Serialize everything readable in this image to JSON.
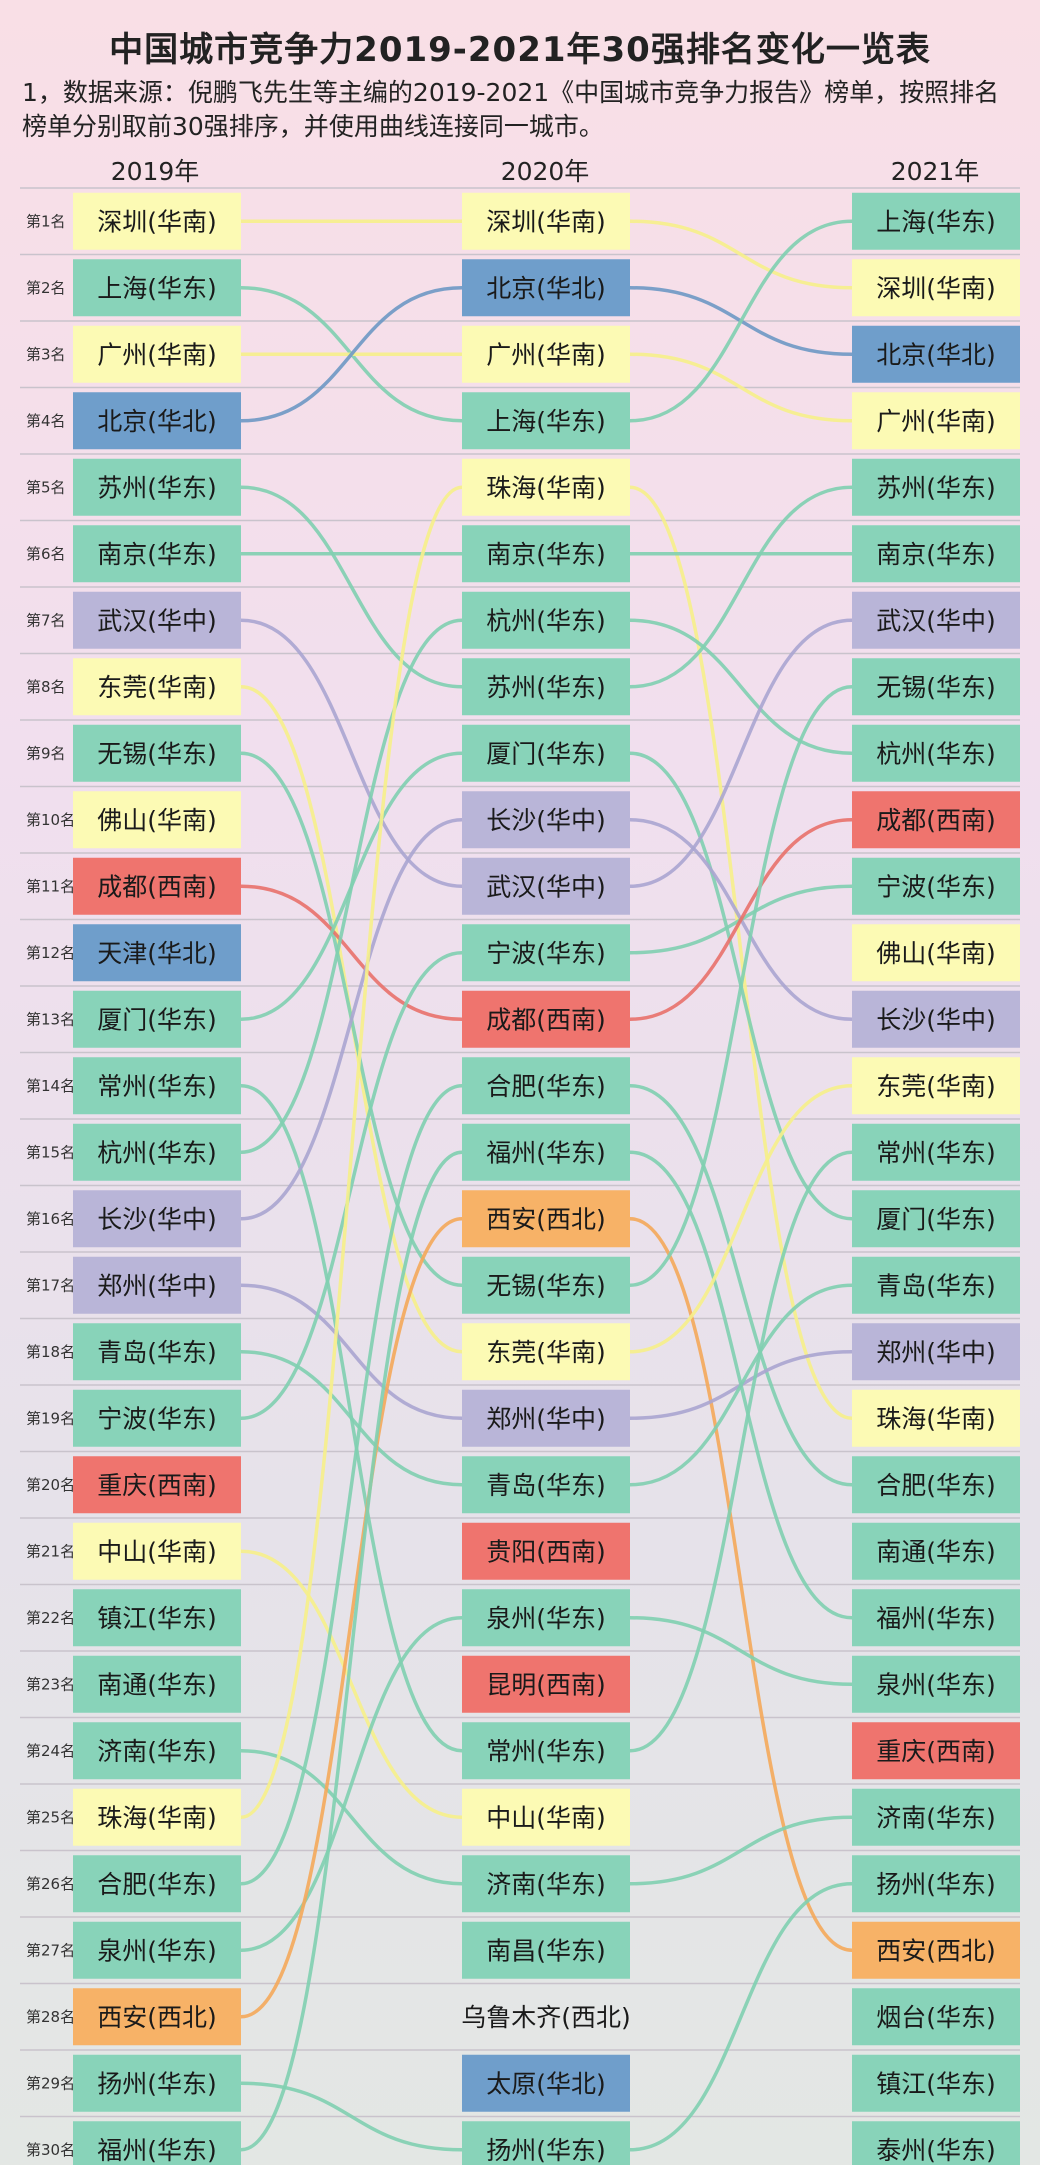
{
  "title": "中国城市竞争力2019-2021年30强排名变化一览表",
  "subtitle": "1，数据来源：倪鹏飞先生等主编的2019-2021《中国城市竞争力报告》榜单，按照排名榜单分别取前30强排序，并使用曲线连接同一城市。",
  "region_colors": {
    "华南": "#fcfab4",
    "华东": "#88d3b9",
    "华北": "#6f9ecb",
    "华中": "#b9b5d8",
    "西南": "#ef746e",
    "西北": "#f7b267"
  },
  "chart_data": {
    "type": "bump",
    "title": "中国城市竞争力2019-2021年30强排名变化一览表",
    "years": [
      "2019年",
      "2020年",
      "2021年"
    ],
    "rank_labels": [
      "第1名",
      "第2名",
      "第3名",
      "第4名",
      "第5名",
      "第6名",
      "第7名",
      "第8名",
      "第9名",
      "第10名",
      "第11名",
      "第12名",
      "第13名",
      "第14名",
      "第15名",
      "第16名",
      "第17名",
      "第18名",
      "第19名",
      "第20名",
      "第21名",
      "第22名",
      "第23名",
      "第24名",
      "第25名",
      "第26名",
      "第27名",
      "第28名",
      "第29名",
      "第30名"
    ],
    "rankings": [
      [
        {
          "city": "深圳",
          "region": "华南"
        },
        {
          "city": "上海",
          "region": "华东"
        },
        {
          "city": "广州",
          "region": "华南"
        },
        {
          "city": "北京",
          "region": "华北"
        },
        {
          "city": "苏州",
          "region": "华东"
        },
        {
          "city": "南京",
          "region": "华东"
        },
        {
          "city": "武汉",
          "region": "华中"
        },
        {
          "city": "东莞",
          "region": "华南"
        },
        {
          "city": "无锡",
          "region": "华东"
        },
        {
          "city": "佛山",
          "region": "华南"
        },
        {
          "city": "成都",
          "region": "西南"
        },
        {
          "city": "天津",
          "region": "华北"
        },
        {
          "city": "厦门",
          "region": "华东"
        },
        {
          "city": "常州",
          "region": "华东"
        },
        {
          "city": "杭州",
          "region": "华东"
        },
        {
          "city": "长沙",
          "region": "华中"
        },
        {
          "city": "郑州",
          "region": "华中"
        },
        {
          "city": "青岛",
          "region": "华东"
        },
        {
          "city": "宁波",
          "region": "华东"
        },
        {
          "city": "重庆",
          "region": "西南"
        },
        {
          "city": "中山",
          "region": "华南"
        },
        {
          "city": "镇江",
          "region": "华东"
        },
        {
          "city": "南通",
          "region": "华东"
        },
        {
          "city": "济南",
          "region": "华东"
        },
        {
          "city": "珠海",
          "region": "华南"
        },
        {
          "city": "合肥",
          "region": "华东"
        },
        {
          "city": "泉州",
          "region": "华东"
        },
        {
          "city": "西安",
          "region": "西北"
        },
        {
          "city": "扬州",
          "region": "华东"
        },
        {
          "city": "福州",
          "region": "华东"
        }
      ],
      [
        {
          "city": "深圳",
          "region": "华南"
        },
        {
          "city": "北京",
          "region": "华北"
        },
        {
          "city": "广州",
          "region": "华南"
        },
        {
          "city": "上海",
          "region": "华东"
        },
        {
          "city": "珠海",
          "region": "华南"
        },
        {
          "city": "南京",
          "region": "华东"
        },
        {
          "city": "杭州",
          "region": "华东"
        },
        {
          "city": "苏州",
          "region": "华东"
        },
        {
          "city": "厦门",
          "region": "华东"
        },
        {
          "city": "长沙",
          "region": "华中"
        },
        {
          "city": "武汉",
          "region": "华中"
        },
        {
          "city": "宁波",
          "region": "华东"
        },
        {
          "city": "成都",
          "region": "西南"
        },
        {
          "city": "合肥",
          "region": "华东"
        },
        {
          "city": "福州",
          "region": "华东"
        },
        {
          "city": "西安",
          "region": "西北"
        },
        {
          "city": "无锡",
          "region": "华东"
        },
        {
          "city": "东莞",
          "region": "华南"
        },
        {
          "city": "郑州",
          "region": "华中"
        },
        {
          "city": "青岛",
          "region": "华东"
        },
        {
          "city": "贵阳",
          "region": "西南"
        },
        {
          "city": "泉州",
          "region": "华东"
        },
        {
          "city": "昆明",
          "region": "西南"
        },
        {
          "city": "常州",
          "region": "华东"
        },
        {
          "city": "中山",
          "region": "华南"
        },
        {
          "city": "济南",
          "region": "华东"
        },
        {
          "city": "南昌",
          "region": "华东"
        },
        {
          "city": "乌鲁木齐",
          "region": "西北"
        },
        {
          "city": "太原",
          "region": "华北"
        },
        {
          "city": "扬州",
          "region": "华东"
        }
      ],
      [
        {
          "city": "上海",
          "region": "华东"
        },
        {
          "city": "深圳",
          "region": "华南"
        },
        {
          "city": "北京",
          "region": "华北"
        },
        {
          "city": "广州",
          "region": "华南"
        },
        {
          "city": "苏州",
          "region": "华东"
        },
        {
          "city": "南京",
          "region": "华东"
        },
        {
          "city": "武汉",
          "region": "华中"
        },
        {
          "city": "无锡",
          "region": "华东"
        },
        {
          "city": "杭州",
          "region": "华东"
        },
        {
          "city": "成都",
          "region": "西南"
        },
        {
          "city": "宁波",
          "region": "华东"
        },
        {
          "city": "佛山",
          "region": "华南"
        },
        {
          "city": "长沙",
          "region": "华中"
        },
        {
          "city": "东莞",
          "region": "华南"
        },
        {
          "city": "常州",
          "region": "华东"
        },
        {
          "city": "厦门",
          "region": "华东"
        },
        {
          "city": "青岛",
          "region": "华东"
        },
        {
          "city": "郑州",
          "region": "华中"
        },
        {
          "city": "珠海",
          "region": "华南"
        },
        {
          "city": "合肥",
          "region": "华东"
        },
        {
          "city": "南通",
          "region": "华东"
        },
        {
          "city": "福州",
          "region": "华东"
        },
        {
          "city": "泉州",
          "region": "华东"
        },
        {
          "city": "重庆",
          "region": "西南"
        },
        {
          "city": "济南",
          "region": "华东"
        },
        {
          "city": "扬州",
          "region": "华东"
        },
        {
          "city": "西安",
          "region": "西北"
        },
        {
          "city": "烟台",
          "region": "华东"
        },
        {
          "city": "镇江",
          "region": "华东"
        },
        {
          "city": "泰州",
          "region": "华东"
        }
      ]
    ]
  }
}
